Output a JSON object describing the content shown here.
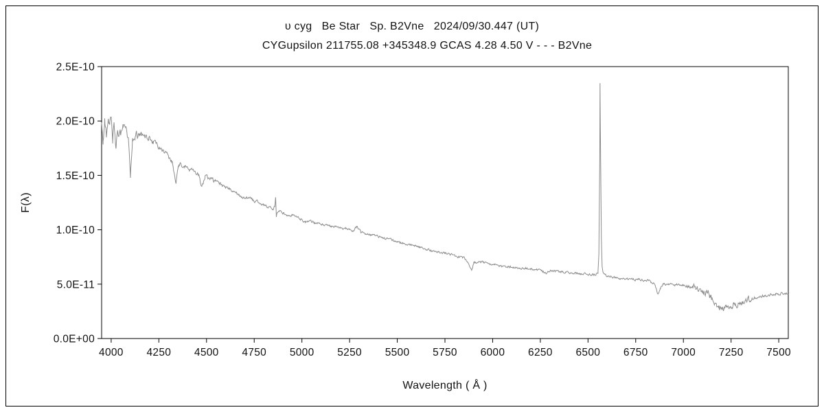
{
  "chart": {
    "title_line1": "υ cyg   Be Star   Sp. B2Vne   2024/09/30.447 (UT)",
    "title_line2": "CYGupsilon 211755.08 +345348.9 GCAS 4.28 4.50 V - - - B2Vne",
    "xlabel": "Wavelength ( Å )",
    "ylabel": "F(λ)"
  },
  "chart_data": {
    "type": "line",
    "title": "υ cyg   Be Star   Sp. B2Vne   2024/09/30.447 (UT)",
    "subtitle": "CYGupsilon 211755.08 +345348.9 GCAS 4.28 4.50 V - - - B2Vne",
    "xlabel": "Wavelength ( Å )",
    "ylabel": "F(λ)",
    "x_unit": "Angstrom",
    "y_scale": 1e-10,
    "xlim": [
      3950,
      7550
    ],
    "ylim_scaled": [
      0,
      2.5
    ],
    "grid": false,
    "legend": "none",
    "line_color": "#8c8c8c",
    "axis_color": "#000000",
    "x_ticks": [
      4000,
      4250,
      4500,
      4750,
      5000,
      5250,
      5500,
      5750,
      6000,
      6250,
      6500,
      6750,
      7000,
      7250,
      7500
    ],
    "y_ticks": [
      {
        "value": 0.0,
        "label": "0.0E+00"
      },
      {
        "value": 0.5,
        "label": "5.0E-11"
      },
      {
        "value": 1.0,
        "label": "1.0E-10"
      },
      {
        "value": 1.5,
        "label": "1.5E-10"
      },
      {
        "value": 2.0,
        "label": "2.0E-10"
      },
      {
        "value": 2.5,
        "label": "2.5E-10"
      }
    ],
    "points_note": "flux in units of 1e-10 (y_scale); anchor points of the spectrum incl. Hd 4101, Hg 4340, HeI 4471, Hb 4861, NaD 5890, Ha emission 6563, telluric 6867 and 7150-7350 bands",
    "points": [
      [
        3950,
        2.02
      ],
      [
        3958,
        1.8
      ],
      [
        3966,
        2.05
      ],
      [
        3975,
        1.88
      ],
      [
        3985,
        2.07
      ],
      [
        3993,
        1.95
      ],
      [
        4000,
        2.03
      ],
      [
        4008,
        1.86
      ],
      [
        4016,
        1.96
      ],
      [
        4026,
        1.74
      ],
      [
        4034,
        1.93
      ],
      [
        4048,
        1.9
      ],
      [
        4062,
        1.94
      ],
      [
        4076,
        1.89
      ],
      [
        4090,
        1.87
      ],
      [
        4101,
        1.49
      ],
      [
        4112,
        1.84
      ],
      [
        4126,
        1.88
      ],
      [
        4142,
        1.87
      ],
      [
        4160,
        1.86
      ],
      [
        4180,
        1.85
      ],
      [
        4200,
        1.83
      ],
      [
        4225,
        1.8
      ],
      [
        4250,
        1.76
      ],
      [
        4275,
        1.72
      ],
      [
        4300,
        1.67
      ],
      [
        4320,
        1.62
      ],
      [
        4340,
        1.42
      ],
      [
        4352,
        1.59
      ],
      [
        4366,
        1.6
      ],
      [
        4385,
        1.58
      ],
      [
        4400,
        1.57
      ],
      [
        4420,
        1.55
      ],
      [
        4440,
        1.53
      ],
      [
        4460,
        1.51
      ],
      [
        4471,
        1.4
      ],
      [
        4481,
        1.43
      ],
      [
        4492,
        1.49
      ],
      [
        4510,
        1.48
      ],
      [
        4530,
        1.46
      ],
      [
        4550,
        1.44
      ],
      [
        4570,
        1.42
      ],
      [
        4590,
        1.4
      ],
      [
        4610,
        1.38
      ],
      [
        4630,
        1.36
      ],
      [
        4650,
        1.34
      ],
      [
        4670,
        1.32
      ],
      [
        4690,
        1.3
      ],
      [
        4712,
        1.29
      ],
      [
        4734,
        1.28
      ],
      [
        4750,
        1.27
      ],
      [
        4770,
        1.25
      ],
      [
        4790,
        1.23
      ],
      [
        4810,
        1.22
      ],
      [
        4830,
        1.2
      ],
      [
        4850,
        1.18
      ],
      [
        4858,
        1.22
      ],
      [
        4862,
        1.31
      ],
      [
        4866,
        1.12
      ],
      [
        4872,
        1.16
      ],
      [
        4882,
        1.17
      ],
      [
        4900,
        1.16
      ],
      [
        4922,
        1.13
      ],
      [
        4940,
        1.14
      ],
      [
        4960,
        1.13
      ],
      [
        4980,
        1.11
      ],
      [
        5000,
        1.1
      ],
      [
        5015,
        1.07
      ],
      [
        5032,
        1.08
      ],
      [
        5055,
        1.07
      ],
      [
        5080,
        1.06
      ],
      [
        5105,
        1.05
      ],
      [
        5135,
        1.04
      ],
      [
        5165,
        1.03
      ],
      [
        5200,
        1.02
      ],
      [
        5228,
        1.01
      ],
      [
        5252,
        1.0
      ],
      [
        5270,
        0.99
      ],
      [
        5290,
        1.03
      ],
      [
        5308,
        0.98
      ],
      [
        5340,
        0.96
      ],
      [
        5372,
        0.95
      ],
      [
        5400,
        0.94
      ],
      [
        5432,
        0.92
      ],
      [
        5464,
        0.91
      ],
      [
        5500,
        0.89
      ],
      [
        5540,
        0.87
      ],
      [
        5580,
        0.86
      ],
      [
        5620,
        0.84
      ],
      [
        5660,
        0.82
      ],
      [
        5700,
        0.8
      ],
      [
        5740,
        0.79
      ],
      [
        5780,
        0.77
      ],
      [
        5820,
        0.75
      ],
      [
        5850,
        0.74
      ],
      [
        5876,
        0.68
      ],
      [
        5890,
        0.62
      ],
      [
        5902,
        0.7
      ],
      [
        5925,
        0.7
      ],
      [
        5952,
        0.7
      ],
      [
        5980,
        0.69
      ],
      [
        6005,
        0.68
      ],
      [
        6032,
        0.67
      ],
      [
        6060,
        0.66
      ],
      [
        6100,
        0.655
      ],
      [
        6150,
        0.65
      ],
      [
        6200,
        0.64
      ],
      [
        6250,
        0.635
      ],
      [
        6280,
        0.6
      ],
      [
        6302,
        0.625
      ],
      [
        6340,
        0.615
      ],
      [
        6380,
        0.61
      ],
      [
        6420,
        0.6
      ],
      [
        6460,
        0.595
      ],
      [
        6500,
        0.59
      ],
      [
        6522,
        0.585
      ],
      [
        6542,
        0.59
      ],
      [
        6552,
        0.6
      ],
      [
        6557,
        0.78
      ],
      [
        6560,
        1.35
      ],
      [
        6561.5,
        1.66
      ],
      [
        6563,
        2.35
      ],
      [
        6564.5,
        1.98
      ],
      [
        6566.5,
        1.6
      ],
      [
        6570,
        0.92
      ],
      [
        6574,
        0.66
      ],
      [
        6580,
        0.6
      ],
      [
        6600,
        0.575
      ],
      [
        6630,
        0.565
      ],
      [
        6662,
        0.555
      ],
      [
        6700,
        0.55
      ],
      [
        6740,
        0.545
      ],
      [
        6780,
        0.54
      ],
      [
        6820,
        0.53
      ],
      [
        6850,
        0.5
      ],
      [
        6867,
        0.4
      ],
      [
        6878,
        0.46
      ],
      [
        6892,
        0.5
      ],
      [
        6920,
        0.5
      ],
      [
        6952,
        0.495
      ],
      [
        7000,
        0.49
      ],
      [
        7032,
        0.485
      ],
      [
        7062,
        0.48
      ],
      [
        7092,
        0.47
      ],
      [
        7122,
        0.44
      ],
      [
        7150,
        0.36
      ],
      [
        7170,
        0.3
      ],
      [
        7186,
        0.27
      ],
      [
        7200,
        0.3
      ],
      [
        7214,
        0.26
      ],
      [
        7230,
        0.31
      ],
      [
        7246,
        0.28
      ],
      [
        7262,
        0.32
      ],
      [
        7280,
        0.31
      ],
      [
        7300,
        0.34
      ],
      [
        7322,
        0.33
      ],
      [
        7342,
        0.36
      ],
      [
        7365,
        0.37
      ],
      [
        7392,
        0.385
      ],
      [
        7422,
        0.39
      ],
      [
        7452,
        0.4
      ],
      [
        7482,
        0.405
      ],
      [
        7512,
        0.41
      ],
      [
        7550,
        0.41
      ]
    ],
    "noise": {
      "seed": 20240930,
      "amplitudes": [
        [
          3950,
          0.07
        ],
        [
          4150,
          0.03
        ],
        [
          4400,
          0.018
        ],
        [
          4800,
          0.013
        ],
        [
          5200,
          0.01
        ],
        [
          6800,
          0.01
        ],
        [
          7010,
          0.012
        ],
        [
          7090,
          0.035
        ],
        [
          7330,
          0.025
        ],
        [
          7400,
          0.012
        ],
        [
          7550,
          0.01
        ]
      ]
    }
  }
}
